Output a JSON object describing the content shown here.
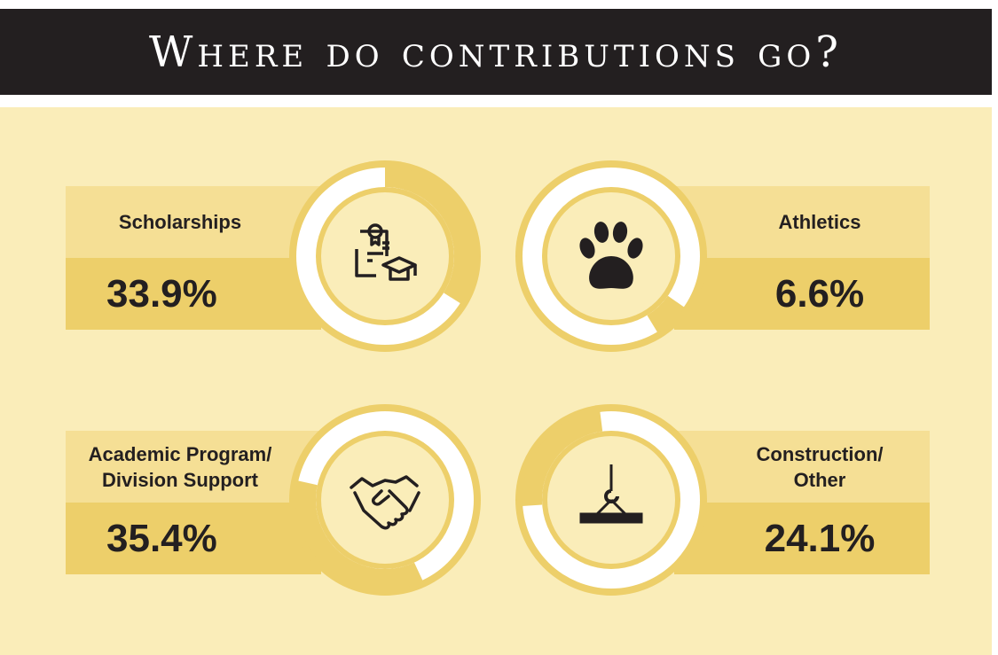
{
  "title": "Where do contributions go?",
  "colors": {
    "background": "#faedb9",
    "gold": "#edcf6a",
    "label_band": "#f5df95",
    "ring": "#ffffff",
    "header": "#231f20"
  },
  "chart_data": {
    "type": "pie",
    "style": "donut",
    "title": "Where do contributions go?",
    "categories": [
      "Scholarships",
      "Athletics",
      "Academic Program/ Division Support",
      "Construction/ Other"
    ],
    "values": [
      33.9,
      6.6,
      35.4,
      24.1
    ],
    "items": [
      {
        "label_lines": [
          "Scholarships"
        ],
        "value": 33.9,
        "value_label": "33.9%",
        "icon": "diploma-graduation-cap-icon"
      },
      {
        "label_lines": [
          "Athletics"
        ],
        "value": 6.6,
        "value_label": "6.6%",
        "icon": "paw-print-icon"
      },
      {
        "label_lines": [
          "Academic Program/",
          "Division Support"
        ],
        "value": 35.4,
        "value_label": "35.4%",
        "icon": "handshake-icon"
      },
      {
        "label_lines": [
          "Construction/",
          "Other"
        ],
        "value": 24.1,
        "value_label": "24.1%",
        "icon": "crane-hook-beam-icon"
      }
    ]
  }
}
